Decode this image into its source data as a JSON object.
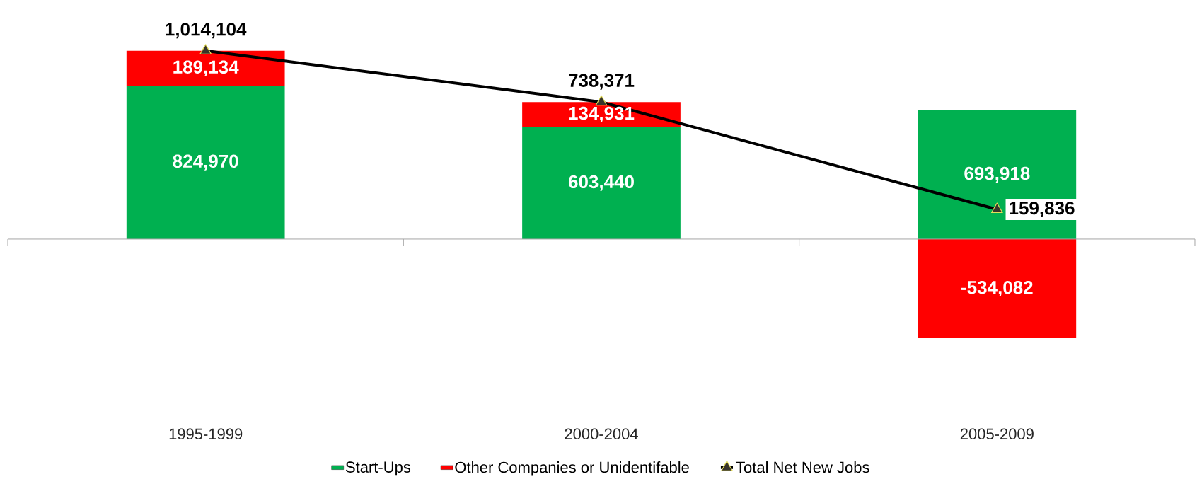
{
  "chart_data": {
    "type": "bar",
    "stacked": true,
    "legend": "bottom",
    "categories": [
      "1995-1999",
      "2000-2004",
      "2005-2009"
    ],
    "series": [
      {
        "name": "Start-Ups",
        "color": "#00b050",
        "values": [
          824970,
          603440,
          693918
        ],
        "value_labels": [
          "824,970",
          "603,440",
          "693,918"
        ]
      },
      {
        "name": "Other Companies or Unidentifable",
        "color": "#ff0000",
        "values": [
          189134,
          134931,
          -534082
        ],
        "value_labels": [
          "189,134",
          "134,931",
          "-534,082"
        ]
      },
      {
        "name": "Total Net New Jobs",
        "type": "line",
        "color": "#000000",
        "marker": "triangle",
        "values": [
          1014104,
          738371,
          159836
        ],
        "value_labels": [
          "1,014,104",
          "738,371",
          "159,836"
        ]
      }
    ]
  }
}
